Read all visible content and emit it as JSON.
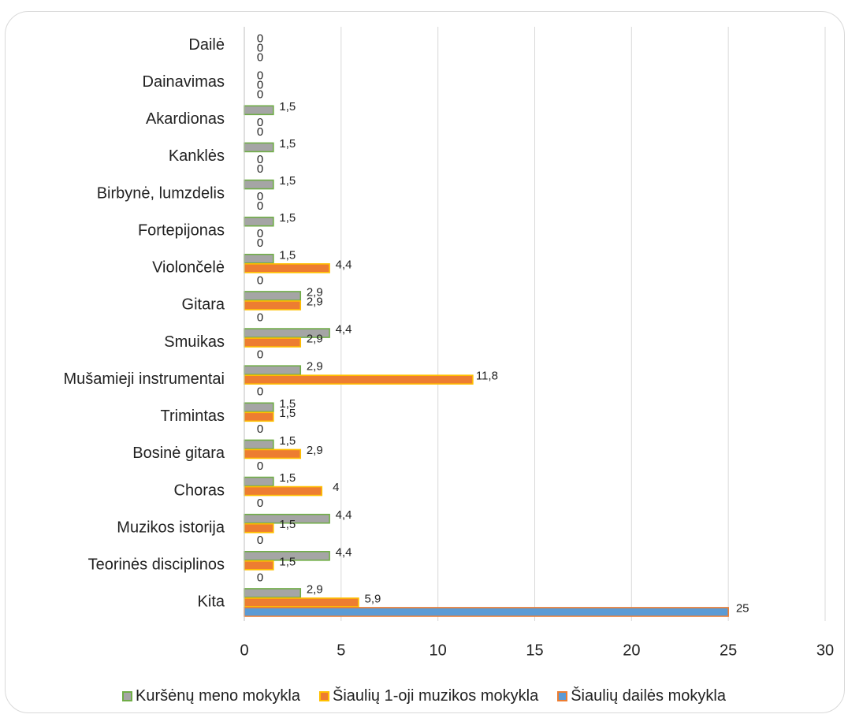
{
  "chart_data": {
    "type": "bar",
    "orientation": "horizontal",
    "categories": [
      "Dailė",
      "Dainavimas",
      "Akardionas",
      "Kanklės",
      "Birbynė, lumzdelis",
      "Fortepijonas",
      "Violončelė",
      "Gitara",
      "Smuikas",
      "Mušamieji instrumentai",
      "Trimintas",
      "Bosinė gitara",
      "Choras",
      "Muzikos istorija",
      "Teorinės disciplinos",
      "Kita"
    ],
    "series": [
      {
        "name": "Kuršėnų meno mokykla",
        "labels": [
          "0",
          "0",
          "1,5",
          "1,5",
          "1,5",
          "1,5",
          "1,5",
          "2,9",
          "4,4",
          "2,9",
          "1,5",
          "1,5",
          "1,5",
          "4,4",
          "4,4",
          "2,9"
        ],
        "values": [
          0,
          0,
          1.5,
          1.5,
          1.5,
          1.5,
          1.5,
          2.9,
          4.4,
          2.9,
          1.5,
          1.5,
          1.5,
          4.4,
          4.4,
          2.9
        ],
        "fill": "#a5a5a5",
        "stroke": "#70ad47"
      },
      {
        "name": "Šiaulių 1-oji muzikos mokykla",
        "labels": [
          "0",
          "0",
          "0",
          "0",
          "0",
          "0",
          "4,4",
          "2,9",
          "2,9",
          "11,8",
          "1,5",
          "2,9",
          "4",
          "1,5",
          "1,5",
          "5,9"
        ],
        "values": [
          0,
          0,
          0,
          0,
          0,
          0,
          4.4,
          2.9,
          2.9,
          11.8,
          1.5,
          2.9,
          4,
          1.5,
          1.5,
          5.9
        ],
        "fill": "#ed7d31",
        "stroke": "#ffc000"
      },
      {
        "name": "Šiaulių dailės mokykla",
        "labels": [
          "0",
          "0",
          "0",
          "0",
          "0",
          "0",
          "0",
          "0",
          "0",
          "0",
          "0",
          "0",
          "0",
          "0",
          "0",
          "25"
        ],
        "values": [
          0,
          0,
          0,
          0,
          0,
          0,
          0,
          0,
          0,
          0,
          0,
          0,
          0,
          0,
          0,
          25
        ],
        "fill": "#5b9bd5",
        "stroke": "#ed7d31"
      }
    ],
    "x_ticks": [
      "0",
      "5",
      "10",
      "15",
      "20",
      "25",
      "30"
    ],
    "xlim": [
      0,
      30
    ],
    "grid": true,
    "legend_position": "bottom"
  }
}
